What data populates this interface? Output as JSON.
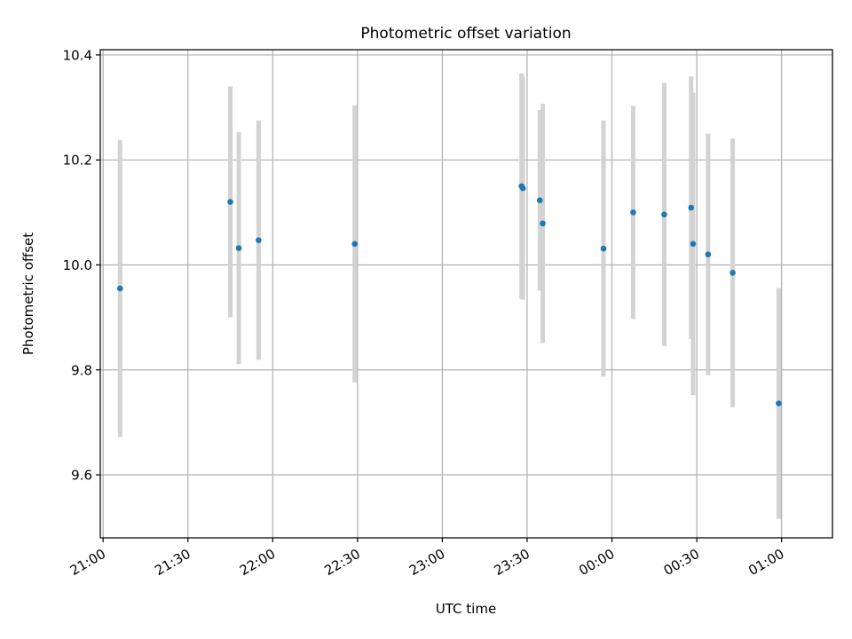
{
  "chart_data": {
    "type": "scatter",
    "title": "Photometric offset variation",
    "xlabel": "UTC time",
    "ylabel": "Photometric offset",
    "x_ticks": [
      "21:00",
      "21:30",
      "22:00",
      "22:30",
      "23:00",
      "23:30",
      "00:00",
      "00:30",
      "01:00"
    ],
    "x_tick_minutes": [
      1260,
      1290,
      1320,
      1350,
      1380,
      1410,
      1440,
      1470,
      1500
    ],
    "xlim_minutes": [
      1259,
      1518
    ],
    "y_ticks": [
      "9.6",
      "9.8",
      "10.0",
      "10.2",
      "10.4"
    ],
    "y_tick_values": [
      9.6,
      9.8,
      10.0,
      10.2,
      10.4
    ],
    "ylim": [
      9.48,
      10.41
    ],
    "grid": true,
    "series": [
      {
        "marker_color": "#1f77b4",
        "errorbar_color": "#d3d3d3",
        "x_minutes": [
          1266,
          1305,
          1308,
          1315,
          1349,
          1408,
          1408.5,
          1414.5,
          1415.5,
          1437,
          1447.5,
          1458.5,
          1468,
          1468.7,
          1474,
          1482.7,
          1499
        ],
        "x_labels_approx": [
          "21:06",
          "21:45",
          "21:48",
          "21:55",
          "22:29",
          "23:28",
          "23:28",
          "23:34",
          "23:35",
          "23:57",
          "00:07",
          "00:18",
          "00:28",
          "00:28",
          "00:34",
          "00:42",
          "00:59"
        ],
        "y": [
          9.955,
          10.12,
          10.032,
          10.047,
          10.04,
          10.15,
          10.146,
          10.123,
          10.079,
          10.031,
          10.1,
          10.096,
          10.109,
          10.04,
          10.02,
          9.985,
          9.736
        ],
        "yerr": [
          0.283,
          0.22,
          0.221,
          0.228,
          0.264,
          0.215,
          0.212,
          0.172,
          0.228,
          0.244,
          0.203,
          0.251,
          0.25,
          0.288,
          0.23,
          0.256,
          0.22
        ]
      }
    ]
  }
}
